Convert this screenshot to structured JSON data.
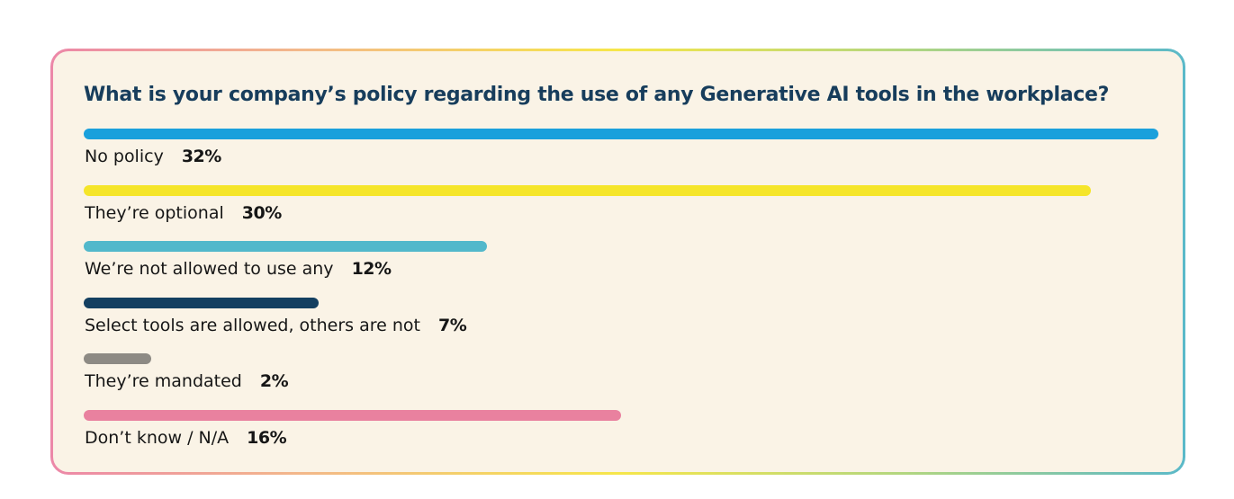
{
  "chart_data": {
    "type": "bar",
    "orientation": "horizontal",
    "title": "What is your company’s policy regarding the use of any Generative AI tools in the workplace?",
    "categories": [
      "No policy",
      "They’re optional",
      "We’re not allowed to use any",
      "Select tools are allowed, others are not",
      "They’re mandated",
      "Don’t know / N/A"
    ],
    "values": [
      32,
      30,
      12,
      7,
      2,
      16
    ],
    "value_labels": [
      "32%",
      "30%",
      "12%",
      "7%",
      "2%",
      "16%"
    ],
    "unit": "%",
    "xlim": [
      0,
      32
    ],
    "grid": false,
    "legend": "none",
    "colors": [
      "#1aa0dc",
      "#f5e52a",
      "#52b8cb",
      "#133f60",
      "#8d8a84",
      "#e9819f"
    ]
  }
}
